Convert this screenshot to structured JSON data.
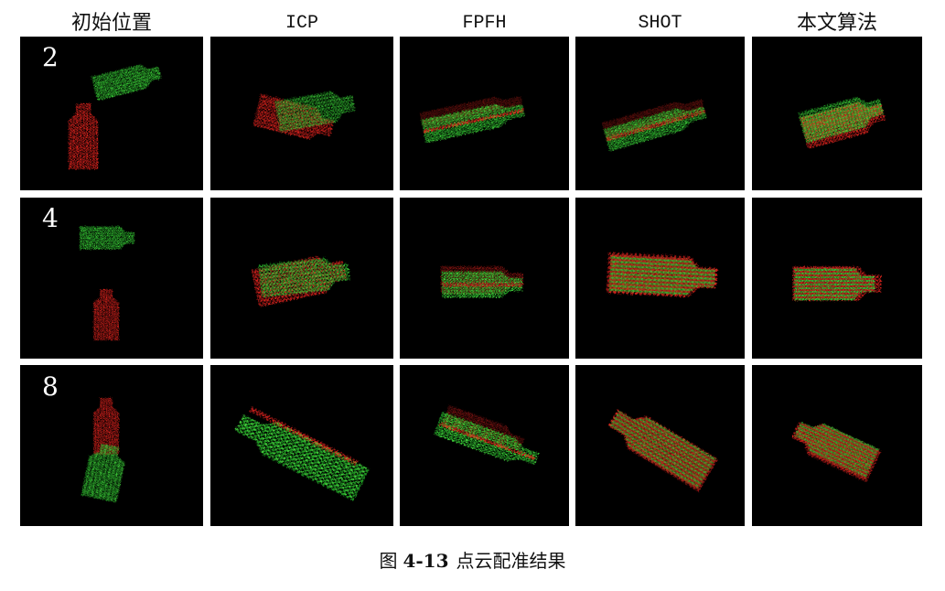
{
  "columns": [
    "初始位置",
    "ICP",
    "FPFH",
    "SHOT",
    "本文算法"
  ],
  "rows": [
    {
      "label": "2"
    },
    {
      "label": "4"
    },
    {
      "label": "8"
    }
  ],
  "caption": {
    "prefix": "图",
    "number": "4-13",
    "title": "点云配准结果"
  },
  "colors": {
    "source_cloud": "#2fb52f",
    "target_cloud": "#c8201e",
    "panel_background": "#000000",
    "page_background": "#ffffff"
  }
}
